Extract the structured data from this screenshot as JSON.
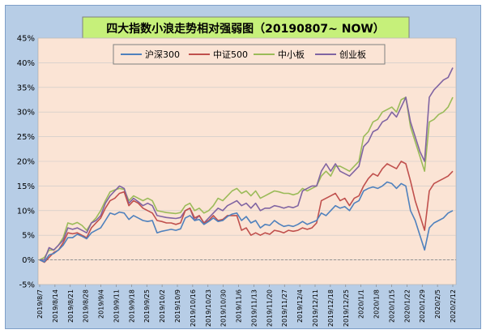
{
  "chart_data": {
    "type": "line",
    "title": "四大指数小浪走势相对强弱图（20190807~ NOW）",
    "xlabel": "",
    "ylabel": "",
    "ylim": [
      -5,
      45
    ],
    "y_ticks": [
      "-5%",
      "0%",
      "5%",
      "10%",
      "15%",
      "20%",
      "25%",
      "30%",
      "35%",
      "40%",
      "45%"
    ],
    "y_tick_values": [
      -5,
      0,
      5,
      10,
      15,
      20,
      25,
      30,
      35,
      40,
      45
    ],
    "x_tick_labels": [
      "2019/8/7",
      "2019/8/14",
      "2019/8/21",
      "2019/8/28",
      "2019/9/4",
      "2019/9/11",
      "2019/9/18",
      "2019/9/25",
      "2019/10/2",
      "2019/10/9",
      "2019/10/16",
      "2019/10/23",
      "2019/10/30",
      "2019/11/6",
      "2019/11/13",
      "2019/11/20",
      "2019/11/27",
      "2019/12/4",
      "2019/12/11",
      "2019/12/18",
      "2019/12/25",
      "2020/1/1",
      "2020/1/8",
      "2020/1/15",
      "2020/1/22",
      "2020/1/29",
      "2020/2/5",
      "2020/2/12"
    ],
    "grid": true,
    "legend_position": "top",
    "colors": {
      "plot_bg": "#fbe4d5",
      "frame_bg": "#b7cde6",
      "title_bg": "#c6f07a"
    },
    "series": [
      {
        "name": "沪深300",
        "color": "#4f81bd",
        "values": [
          0,
          -0.4,
          1,
          1.3,
          2,
          3,
          4.5,
          4.5,
          5.2,
          4.8,
          4.3,
          5.5,
          6,
          6.5,
          8,
          9.5,
          9.2,
          9.7,
          9.5,
          8.2,
          9,
          8.5,
          8,
          7.8,
          8,
          5.5,
          5.8,
          6,
          6.2,
          6,
          6.3,
          8.5,
          9,
          8,
          8.2,
          7.2,
          7.8,
          8.5,
          7.8,
          8,
          8.8,
          9.3,
          9.5,
          8,
          8.8,
          7.5,
          8,
          6.5,
          7.2,
          7,
          8,
          7.3,
          6.8,
          7,
          6.8,
          7.2,
          7.8,
          7.2,
          7.6,
          8,
          9.5,
          9,
          10,
          11,
          10.5,
          10.8,
          10,
          11.5,
          12,
          14,
          14.5,
          14.8,
          14.5,
          15,
          15.8,
          15.5,
          14.5,
          15.5,
          15,
          10,
          8,
          5,
          2,
          6.5,
          7.5,
          8,
          8.5,
          9.5,
          10
        ]
      },
      {
        "name": "中证500",
        "color": "#c0504d",
        "values": [
          0,
          -0.5,
          0.5,
          1.5,
          2,
          3.5,
          5.5,
          5.3,
          5.5,
          5,
          4.5,
          6.5,
          7.5,
          8.5,
          10.5,
          12,
          12.5,
          13.5,
          13.8,
          11,
          12,
          11.5,
          10.5,
          10,
          9.5,
          8,
          7.8,
          7.5,
          7.5,
          7.2,
          7.5,
          10,
          10.5,
          8.5,
          9,
          7.5,
          8,
          9,
          8,
          8.2,
          9,
          9,
          9,
          6,
          6.5,
          5,
          5.5,
          5,
          5.5,
          5.2,
          6,
          5.8,
          5.5,
          6,
          5.8,
          6,
          6.5,
          6.2,
          6.5,
          7.5,
          12,
          12.5,
          13,
          13.5,
          12,
          12.5,
          11,
          12.5,
          13,
          15,
          16.5,
          17.5,
          17,
          18.5,
          19.5,
          19,
          18.5,
          20,
          19.5,
          16,
          12,
          9,
          6,
          14,
          15.5,
          16,
          16.5,
          17,
          18
        ]
      },
      {
        "name": "中小板",
        "color": "#9bbb59",
        "values": [
          0,
          0.5,
          2,
          2,
          3,
          4.5,
          7.5,
          7.2,
          7.6,
          7,
          6,
          7.5,
          8.5,
          10,
          12,
          13.8,
          14.2,
          14.5,
          14.3,
          12,
          13,
          12.5,
          12,
          12.5,
          12,
          10,
          9.8,
          9.6,
          9.5,
          9.4,
          9.6,
          11,
          11.5,
          10,
          10.5,
          9.5,
          10,
          11,
          12.5,
          12,
          13,
          14,
          14.5,
          13.5,
          14,
          13,
          14,
          12.5,
          13,
          13.5,
          14,
          13.8,
          13.5,
          13.5,
          13.2,
          13.5,
          14.5,
          14,
          14.5,
          15,
          17,
          18,
          17,
          19,
          19,
          18.5,
          18,
          19,
          20,
          25,
          26,
          28,
          28.5,
          30,
          30.5,
          31,
          30,
          32.5,
          33,
          27,
          24,
          21,
          18,
          28,
          28.5,
          29.5,
          30,
          31,
          33
        ]
      },
      {
        "name": "创业板",
        "color": "#8064a2",
        "values": [
          0,
          0,
          2.5,
          2,
          3,
          4,
          6.5,
          6.2,
          6.5,
          6,
          5.5,
          7.5,
          8,
          9,
          11.5,
          13,
          14,
          15,
          14.5,
          11.5,
          12.5,
          11.8,
          11,
          11.5,
          11,
          9,
          8.8,
          8.6,
          8.5,
          8.4,
          8.6,
          10,
          10.5,
          8,
          9,
          7.5,
          8.5,
          9.5,
          10.5,
          10,
          11,
          11.5,
          12,
          11,
          11.5,
          10.5,
          11.5,
          10,
          10.5,
          10.5,
          11,
          10.8,
          10.5,
          10.8,
          10.6,
          11,
          14,
          14.5,
          15,
          15,
          18,
          19.5,
          18,
          19.5,
          18,
          17.5,
          17,
          18,
          19,
          23,
          24,
          26,
          26.5,
          28,
          28.5,
          30,
          29,
          31,
          33,
          28,
          25,
          22,
          20,
          33,
          34.5,
          35.5,
          36.5,
          37,
          39
        ]
      }
    ]
  }
}
